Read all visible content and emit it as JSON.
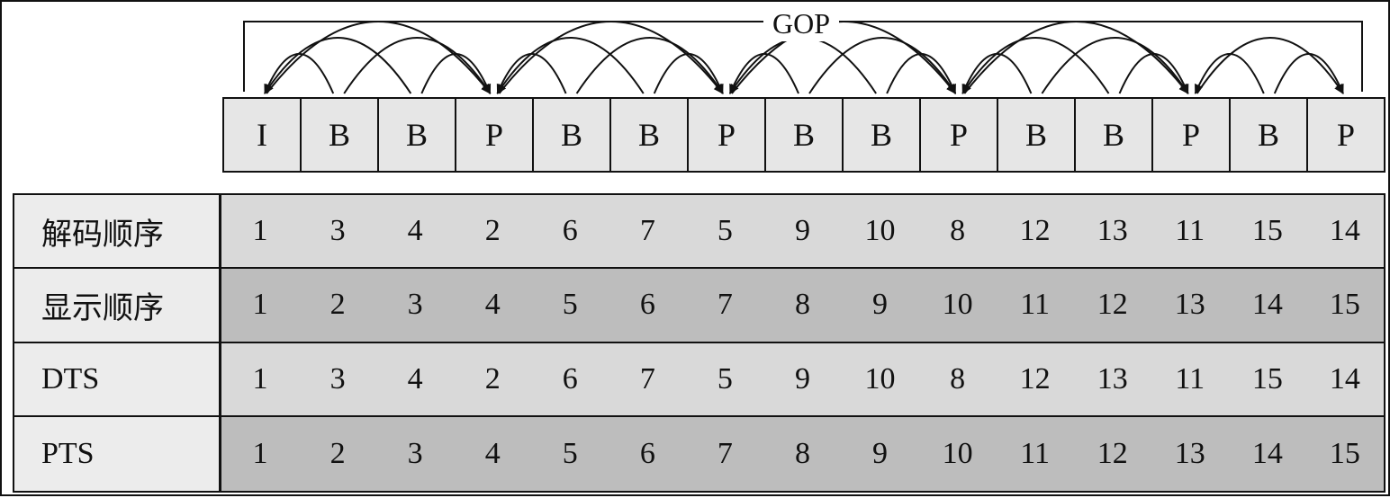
{
  "gop_label": "GOP",
  "frames": [
    "I",
    "B",
    "B",
    "P",
    "B",
    "B",
    "P",
    "B",
    "B",
    "P",
    "B",
    "B",
    "P",
    "B",
    "P"
  ],
  "rows": [
    {
      "label": "解码顺序",
      "values": [
        "1",
        "3",
        "4",
        "2",
        "6",
        "7",
        "5",
        "9",
        "10",
        "8",
        "12",
        "13",
        "11",
        "15",
        "14"
      ],
      "shade": "light"
    },
    {
      "label": "显示顺序",
      "values": [
        "1",
        "2",
        "3",
        "4",
        "5",
        "6",
        "7",
        "8",
        "9",
        "10",
        "11",
        "12",
        "13",
        "14",
        "15"
      ],
      "shade": "dark"
    },
    {
      "label": "DTS",
      "values": [
        "1",
        "3",
        "4",
        "2",
        "6",
        "7",
        "5",
        "9",
        "10",
        "8",
        "12",
        "13",
        "11",
        "15",
        "14"
      ],
      "shade": "light"
    },
    {
      "label": "PTS",
      "values": [
        "1",
        "2",
        "3",
        "4",
        "5",
        "6",
        "7",
        "8",
        "9",
        "10",
        "11",
        "12",
        "13",
        "14",
        "15"
      ],
      "shade": "dark"
    }
  ],
  "references": [
    {
      "from": 1,
      "to": 0
    },
    {
      "from": 1,
      "to": 3
    },
    {
      "from": 2,
      "to": 0
    },
    {
      "from": 2,
      "to": 3
    },
    {
      "from": 0,
      "to": 3
    },
    {
      "from": 4,
      "to": 3
    },
    {
      "from": 4,
      "to": 6
    },
    {
      "from": 5,
      "to": 3
    },
    {
      "from": 5,
      "to": 6
    },
    {
      "from": 3,
      "to": 6
    },
    {
      "from": 7,
      "to": 6
    },
    {
      "from": 7,
      "to": 9
    },
    {
      "from": 8,
      "to": 6
    },
    {
      "from": 8,
      "to": 9
    },
    {
      "from": 6,
      "to": 9
    },
    {
      "from": 10,
      "to": 9
    },
    {
      "from": 10,
      "to": 12
    },
    {
      "from": 11,
      "to": 9
    },
    {
      "from": 11,
      "to": 12
    },
    {
      "from": 9,
      "to": 12
    },
    {
      "from": 13,
      "to": 12
    },
    {
      "from": 13,
      "to": 14
    },
    {
      "from": 12,
      "to": 14
    }
  ]
}
